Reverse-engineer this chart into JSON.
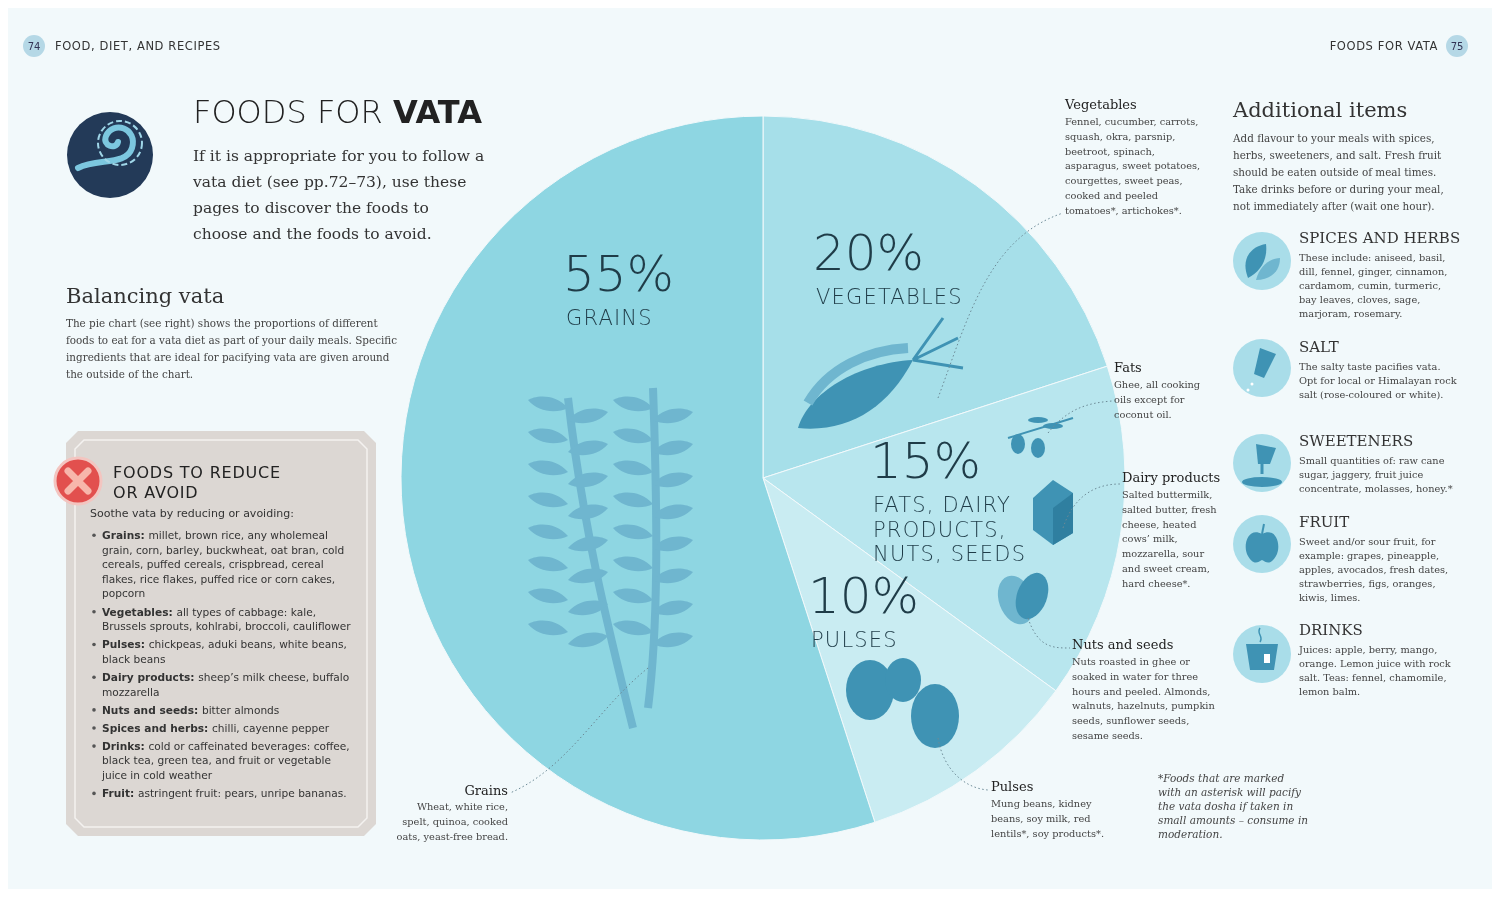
{
  "chart_data": {
    "type": "pie",
    "title": "FOODS FOR VATA",
    "subtitle": "If it is appropriate for you to follow a vata diet (see pp.72–73), use these pages to discover the foods to choose and the foods to avoid.",
    "categories": [
      "VEGETABLES",
      "FATS, DAIRY PRODUCTS, NUTS, SEEDS",
      "PULSES",
      "GRAINS"
    ],
    "values": [
      20,
      15,
      10,
      55
    ],
    "value_labels": [
      "20%",
      "15%",
      "10%",
      "55%"
    ],
    "colors": [
      "#a6dfe9",
      "#b8e6ee",
      "#c9ecf2",
      "#8ed6e2"
    ],
    "annotations": [
      "74",
      "FOOD, DIET, AND RECIPES",
      "FOODS FOR VATA",
      "75",
      "Balancing vata",
      "The pie chart (see right) shows the proportions of different foods to eat for a vata diet as part of your daily meals. Specific ingredients that are ideal for pacifying vata are given around the outside of the chart.",
      "FOODS TO REDUCE OR AVOID",
      "Soothe vata by reducing or avoiding:",
      "Grains: millet, brown rice, any wholemeal grain, corn, barley, buckwheat, oat bran, cold cereals, puffed cereals, crispbread, cereal flakes, rice flakes, puffed rice or corn cakes, popcorn",
      "Vegetables: all types of cabbage: kale, Brussels sprouts, kohlrabi, broccoli, cauliflower",
      "Pulses: chickpeas, aduki beans, white beans, black beans",
      "Dairy products: sheep’s milk cheese, buffalo mozzarella",
      "Nuts and seeds: bitter almonds",
      "Spices and herbs: chilli, cayenne pepper",
      "Drinks: cold or caffeinated beverages: coffee, black tea, green tea, and fruit or vegetable juice in cold weather",
      "Fruit: astringent fruit: pears, unripe bananas.",
      "Vegetables",
      "Fennel, cucumber, carrots, squash, okra, parsnip, beetroot, spinach, asparagus, sweet potatoes, courgettes, sweet peas, cooked and peeled tomatoes*, artichokes*.",
      "Fats",
      "Ghee, all cooking oils except for coconut oil.",
      "Dairy products",
      "Salted buttermilk, salted butter, fresh cheese, heated cows’ milk, mozzarella, sour and sweet cream, hard cheese*.",
      "Nuts and seeds",
      "Nuts roasted in ghee or soaked in water for three hours and peeled. Almonds, walnuts, hazelnuts, pumpkin seeds, sunflower seeds, sesame seeds.",
      "Grains",
      "Wheat, white rice, spelt, quinoa, cooked oats, yeast-free bread.",
      "Pulses",
      "Mung beans, kidney beans, soy milk, red lentils*, soy products*.",
      "*Foods that are marked with an asterisk will pacify the vata dosha if taken in small amounts – consume in moderation.",
      "Additional items",
      "Add flavour to your meals with spices, herbs, sweeteners, and salt. Fresh fruit should be eaten outside of meal times. Take drinks before or during your meal, not immediately after (wait one hour).",
      "SPICES AND HERBS",
      "These include: aniseed, basil, dill, fennel, ginger, cinnamon, cardamom, cumin, turmeric, bay leaves, cloves, sage, marjoram, rosemary.",
      "SALT",
      "The salty taste pacifies vata. Opt for local or Himalayan rock salt (rose-coloured or white).",
      "SWEETENERS",
      "Small quantities of: raw cane sugar, jaggery, fruit juice concentrate, molasses, honey.*",
      "FRUIT",
      "Sweet and/or sour fruit, for example: grapes, pineapple, apples, avocados, fresh dates, strawberries, figs, oranges, kiwis, limes.",
      "DRINKS",
      "Juices: apple, berry, mango, orange. Lemon juice with rock salt. Teas: fennel, chamomile, lemon balm."
    ]
  }
}
